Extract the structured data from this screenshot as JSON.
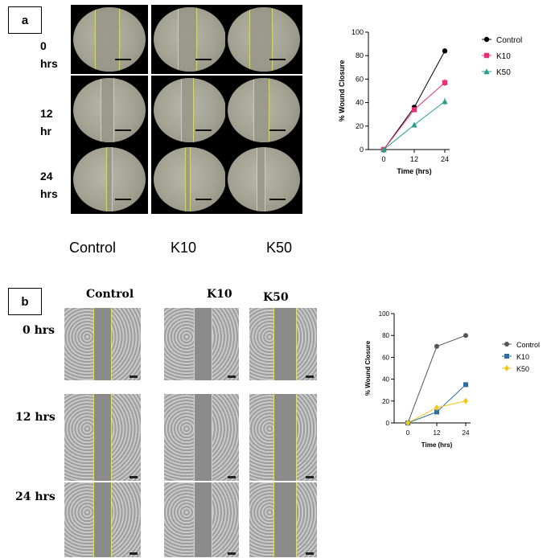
{
  "panel_a": {
    "tag": "a",
    "rows": [
      "0\nhrs",
      "12\nhr",
      "24\nhrs"
    ],
    "cols": [
      "Control",
      "K10",
      "K50"
    ]
  },
  "panel_b": {
    "tag": "b",
    "rows": [
      "0 hrs",
      "12 hrs",
      "24 hrs"
    ],
    "cols": [
      "Control",
      "K10",
      "K50"
    ]
  },
  "chart_data": [
    {
      "type": "line",
      "xlabel": "Time (hrs)",
      "ylabel": "% Wound Closure",
      "x": [
        0,
        12,
        24
      ],
      "ylim": [
        0,
        100
      ],
      "yticks": [
        0,
        20,
        40,
        60,
        80,
        100
      ],
      "series": [
        {
          "name": "Control",
          "values": [
            0,
            36,
            84
          ],
          "errors": [
            0,
            2,
            1
          ],
          "color": "#000000",
          "marker": "circle"
        },
        {
          "name": "K10",
          "values": [
            0,
            34,
            57
          ],
          "errors": [
            0,
            2,
            3
          ],
          "color": "#e8307a",
          "marker": "square"
        },
        {
          "name": "K50",
          "values": [
            0,
            21,
            41
          ],
          "errors": [
            0,
            1,
            3
          ],
          "color": "#2a9d8f",
          "marker": "triangle"
        }
      ]
    },
    {
      "type": "line",
      "xlabel": "Time (hrs)",
      "ylabel": "% Wound Closure",
      "x": [
        0,
        12,
        24
      ],
      "ylim": [
        0,
        100
      ],
      "yticks": [
        0,
        20,
        40,
        60,
        80,
        100
      ],
      "series": [
        {
          "name": "Control",
          "values": [
            0,
            70,
            80
          ],
          "color": "#555555",
          "marker": "circle"
        },
        {
          "name": "K10",
          "values": [
            0,
            10,
            35
          ],
          "color": "#2b6f9e",
          "marker": "square"
        },
        {
          "name": "K50",
          "values": [
            0,
            14,
            20
          ],
          "color": "#f5c518",
          "marker": "diamond"
        }
      ]
    }
  ]
}
